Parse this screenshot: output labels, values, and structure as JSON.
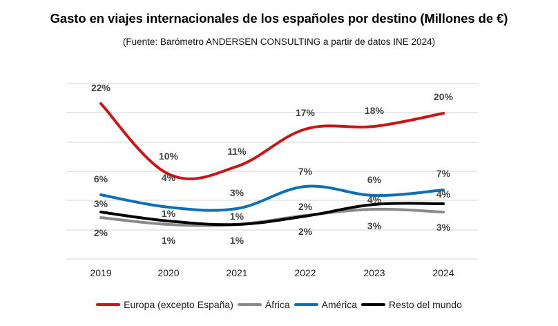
{
  "chart_data": {
    "type": "line",
    "title": "Gasto en viajes internacionales de los españoles por destino (Millones de €)",
    "subtitle": "(Fuente: Barómetro ANDERSEN CONSULTING a partir de datos INE 2024)",
    "categories": [
      "2019",
      "2020",
      "2021",
      "2022",
      "2023",
      "2024"
    ],
    "grid": true,
    "legend_position": "bottom",
    "series": [
      {
        "name": "Europa (excepto España)",
        "color": "#cc1417",
        "values": [
          22,
          10,
          11,
          17,
          18,
          20
        ],
        "labels": [
          "22%",
          "10%",
          "11%",
          "17%",
          "18%",
          "20%"
        ]
      },
      {
        "name": "África",
        "color": "#8a8a8a",
        "values": [
          2,
          1,
          1,
          2,
          3,
          3
        ],
        "labels": [
          "2%",
          "1%",
          "1%",
          "2%",
          "3%",
          "3%"
        ]
      },
      {
        "name": "América",
        "color": "#0e6fb5",
        "values": [
          6,
          4,
          3,
          7,
          6,
          7
        ],
        "labels": [
          "6%",
          "4%",
          "3%",
          "7%",
          "6%",
          "7%"
        ]
      },
      {
        "name": "Resto del mundo",
        "color": "#000000",
        "values": [
          3,
          1,
          1,
          2,
          4,
          4
        ],
        "labels": [
          "3%",
          "1%",
          "1%",
          "2%",
          "4%",
          "4%"
        ]
      }
    ]
  }
}
